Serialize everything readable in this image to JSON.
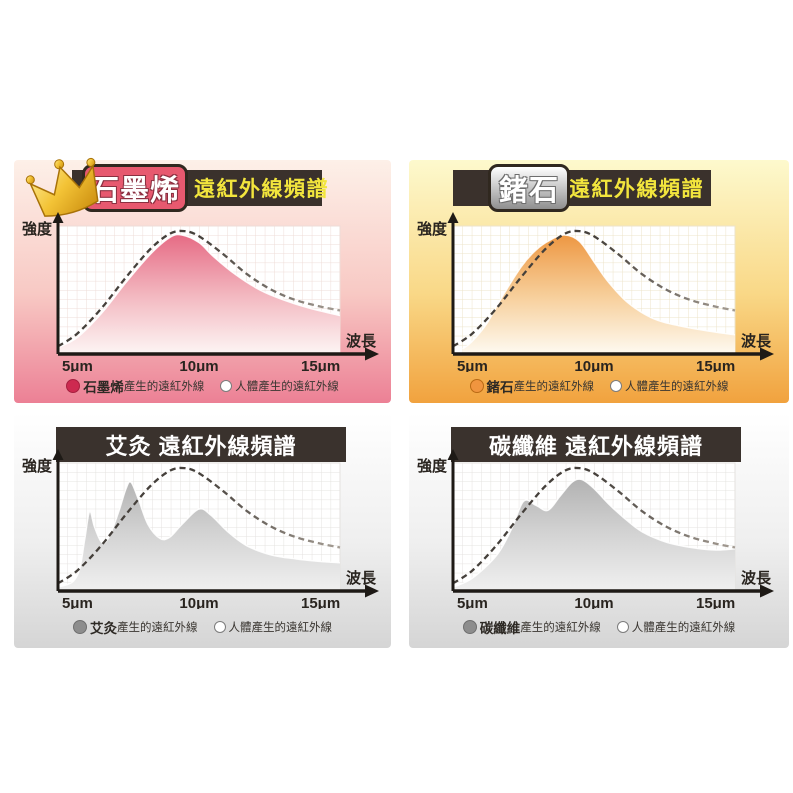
{
  "page": {
    "background": "#ffffff"
  },
  "panels": [
    {
      "id": "graphene",
      "variant": "crown-badge",
      "badge_label": "石墨烯",
      "title_suffix": "遠紅外線頻譜",
      "colors": {
        "panel_top": "#fdf0e8",
        "panel_mid": "#f8c9c4",
        "panel_bottom": "#ec8095",
        "bar_fill": "#3a312c",
        "bar_text": "#f2e53d",
        "badge_fill": "#e7596f",
        "badge_border": "#30281f",
        "badge_text": "#ffffff",
        "grid": "#eedcd7",
        "dot": "#cd2a50",
        "dot_border": "#a61f3f",
        "curve_top": "#e4607c",
        "curve_mid": "#f3b9c1",
        "curve_bottom": "#fdf5f4",
        "dash_dark": "#45403b",
        "dash_light": "#a59d94"
      },
      "legend": {
        "series_name": "石墨烯",
        "series_suffix": "產生的遠紅外線",
        "human_label": "人體產生的遠紅外線"
      }
    },
    {
      "id": "germanium",
      "variant": "badge",
      "badge_label": "鍺石",
      "title_suffix": "遠紅外線頻譜",
      "colors": {
        "panel_top": "#fdf9cd",
        "panel_mid": "#f9d887",
        "panel_bottom": "#f1a23e",
        "bar_fill": "#3a312c",
        "bar_text": "#f2e53d",
        "badge_fill_top": "#ffffff",
        "badge_fill_bottom": "#8f8f8f",
        "badge_border": "#30281f",
        "badge_text": "#ffffff",
        "grid": "#ece3c9",
        "dot": "#f0953f",
        "dot_border": "#b96a14",
        "curve_top": "#ec8f35",
        "curve_mid": "#f7cf9b",
        "curve_bottom": "#fefaf1",
        "dash_dark": "#45403b",
        "dash_light": "#a59d94"
      },
      "legend": {
        "series_name": "鍺石",
        "series_suffix": "產生的遠紅外線",
        "human_label": "人體產生的遠紅外線"
      }
    },
    {
      "id": "moxibustion",
      "variant": "plain",
      "title": "艾灸 遠紅外線頻譜",
      "colors": {
        "panel_top": "#ffffff",
        "panel_mid": "#efefef",
        "panel_bottom": "#d5d5d5",
        "bar_fill": "#3a322d",
        "bar_text": "#ffffff",
        "grid": "#e4e2df",
        "dot": "#8d8d8d",
        "dot_border": "#6f6f6f",
        "curve_top": "#a8a8a8",
        "curve_mid": "#d3d3d3",
        "curve_bottom": "#f0f0f0",
        "dash_dark": "#45403b",
        "dash_light": "#a59d94"
      },
      "legend": {
        "series_name": "艾灸",
        "series_suffix": " 產生的遠紅外線",
        "human_label": "人體產生的遠紅外線"
      }
    },
    {
      "id": "carbon-fiber",
      "variant": "plain",
      "title": "碳纖維 遠紅外線頻譜",
      "colors": {
        "panel_top": "#ffffff",
        "panel_mid": "#efefef",
        "panel_bottom": "#d5d5d5",
        "bar_fill": "#3a322d",
        "bar_text": "#ffffff",
        "grid": "#e4e2df",
        "dot": "#8d8d8d",
        "dot_border": "#6f6f6f",
        "curve_top": "#a8a8a8",
        "curve_mid": "#d3d3d3",
        "curve_bottom": "#f0f0f0",
        "dash_dark": "#45403b",
        "dash_light": "#a59d94"
      },
      "legend": {
        "series_name": "碳纖維",
        "series_suffix": "產生的遠紅外線",
        "human_label": "人體產生的遠紅外線"
      }
    }
  ],
  "chart_data": [
    {
      "type": "area",
      "title": "石墨烯遠紅外線頻譜",
      "xlabel": "波長",
      "ylabel": "強度",
      "x_unit": "μm",
      "xlim": [
        4.2,
        15.8
      ],
      "ylim": [
        0,
        100
      ],
      "x_tick_values": [
        5,
        10,
        15
      ],
      "x_ticks": [
        "5μm",
        "10μm",
        "15μm"
      ],
      "grid": true,
      "legend_position": "bottom",
      "series": [
        {
          "name": "石墨烯產生的遠紅外線",
          "style": "filled",
          "x": [
            4.2,
            5,
            6,
            7,
            8,
            8.8,
            9.3,
            10,
            10.6,
            11.5,
            12.5,
            13.5,
            14.5,
            15.8
          ],
          "y": [
            5,
            13,
            32,
            56,
            78,
            91,
            93,
            87,
            76,
            62,
            50,
            42,
            36,
            30
          ]
        },
        {
          "name": "人體產生的遠紅外線",
          "style": "dashed",
          "x": [
            4.2,
            5,
            6,
            7,
            8,
            8.8,
            9.4,
            10,
            11,
            12,
            13,
            14,
            15,
            15.8
          ],
          "y": [
            6,
            16,
            36,
            60,
            82,
            94,
            96,
            92,
            78,
            62,
            50,
            42,
            37,
            34
          ]
        }
      ]
    },
    {
      "type": "area",
      "title": "鍺石遠紅外線頻譜",
      "xlabel": "波長",
      "ylabel": "強度",
      "x_unit": "μm",
      "xlim": [
        4.2,
        15.8
      ],
      "ylim": [
        0,
        100
      ],
      "x_tick_values": [
        5,
        10,
        15
      ],
      "x_ticks": [
        "5μm",
        "10μm",
        "15μm"
      ],
      "grid": true,
      "legend_position": "bottom",
      "series": [
        {
          "name": "鍺石產生的遠紅外線",
          "style": "filled",
          "x": [
            4.6,
            5,
            5.6,
            6.2,
            7,
            7.6,
            8.2,
            8.8,
            9.4,
            10,
            10.6,
            11.4,
            12.4,
            13.5,
            15,
            15.8
          ],
          "y": [
            4,
            10,
            24,
            44,
            68,
            81,
            89,
            93,
            88,
            72,
            56,
            40,
            28,
            22,
            17,
            15
          ]
        },
        {
          "name": "人體產生的遠紅外線",
          "style": "dashed",
          "x": [
            4.2,
            5,
            6,
            7,
            8,
            8.8,
            9.4,
            10,
            11,
            12,
            13,
            14,
            15,
            15.8
          ],
          "y": [
            6,
            16,
            36,
            60,
            82,
            94,
            96,
            92,
            78,
            62,
            50,
            42,
            37,
            34
          ]
        }
      ]
    },
    {
      "type": "area",
      "title": "艾灸遠紅外線頻譜",
      "xlabel": "波長",
      "ylabel": "強度",
      "x_unit": "μm",
      "xlim": [
        4.2,
        15.8
      ],
      "ylim": [
        0,
        100
      ],
      "x_tick_values": [
        5,
        10,
        15
      ],
      "x_ticks": [
        "5μm",
        "10μm",
        "15μm"
      ],
      "grid": true,
      "legend_position": "bottom",
      "series": [
        {
          "name": "艾灸產生的遠紅外線",
          "style": "filled",
          "x": [
            4.2,
            4.8,
            5.1,
            5.3,
            5.5,
            5.7,
            6.0,
            6.3,
            6.7,
            7.0,
            7.2,
            7.5,
            7.9,
            8.4,
            8.8,
            9.3,
            10.0,
            10.5,
            11.2,
            12,
            13,
            14,
            15,
            15.8
          ],
          "y": [
            3,
            7,
            18,
            40,
            62,
            50,
            38,
            42,
            62,
            80,
            85,
            72,
            52,
            41,
            42,
            52,
            64,
            59,
            46,
            35,
            28,
            25,
            23,
            22
          ]
        },
        {
          "name": "人體產生的遠紅外線",
          "style": "dashed",
          "x": [
            4.2,
            5,
            6,
            7,
            8,
            8.8,
            9.4,
            10,
            11,
            12,
            13,
            14,
            15,
            15.8
          ],
          "y": [
            6,
            16,
            36,
            60,
            82,
            94,
            96,
            92,
            78,
            62,
            50,
            42,
            37,
            34
          ]
        }
      ]
    },
    {
      "type": "area",
      "title": "碳纖維遠紅外線頻譜",
      "xlabel": "波長",
      "ylabel": "強度",
      "x_unit": "μm",
      "xlim": [
        4.2,
        15.8
      ],
      "ylim": [
        0,
        100
      ],
      "x_tick_values": [
        5,
        10,
        15
      ],
      "x_ticks": [
        "5μm",
        "10μm",
        "15μm"
      ],
      "grid": true,
      "legend_position": "bottom",
      "series": [
        {
          "name": "碳纖維產生的遠紅外線",
          "style": "filled",
          "x": [
            4.2,
            5,
            6,
            6.6,
            7.1,
            7.6,
            8.1,
            8.6,
            9.1,
            9.5,
            10,
            10.6,
            11.3,
            12,
            13,
            14,
            15,
            15.8
          ],
          "y": [
            3,
            10,
            28,
            48,
            70,
            67,
            63,
            74,
            85,
            87,
            80,
            68,
            56,
            46,
            38,
            34,
            32,
            33
          ]
        },
        {
          "name": "人體產生的遠紅外線",
          "style": "dashed",
          "x": [
            4.2,
            5,
            6,
            7,
            8,
            8.8,
            9.4,
            10,
            11,
            12,
            13,
            14,
            15,
            15.8
          ],
          "y": [
            6,
            16,
            36,
            60,
            82,
            94,
            96,
            92,
            78,
            62,
            50,
            42,
            37,
            34
          ]
        }
      ]
    }
  ]
}
